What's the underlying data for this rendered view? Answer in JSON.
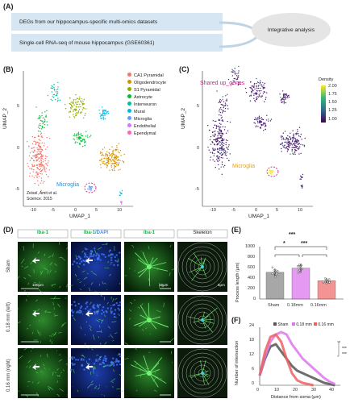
{
  "panelA": {
    "label": "(A)",
    "bar1": "DEGs from our hippocampus-specific multi-omics datasets",
    "bar2": "Single-cell RNA-seq of mouse hippocampus (GSE60361)",
    "ellipse": "Integrative analysis"
  },
  "panelB": {
    "label": "(B)",
    "xlabel": "UMAP_1",
    "ylabel": "UMAP_2",
    "xticks": [
      "-10",
      "-5",
      "0",
      "5",
      "10"
    ],
    "yticks": [
      "5",
      "0",
      "-5"
    ],
    "legend": [
      {
        "name": "CA1 Pyramidal",
        "color": "#f4756b"
      },
      {
        "name": "Oligodendrocyte",
        "color": "#d39200"
      },
      {
        "name": "S1 Pyramidal",
        "color": "#93aa00"
      },
      {
        "name": "Astrocyte",
        "color": "#00ba38"
      },
      {
        "name": "Interneuron",
        "color": "#00c19f"
      },
      {
        "name": "Mural",
        "color": "#00b9e3"
      },
      {
        "name": "Microglia",
        "color": "#619cff"
      },
      {
        "name": "Endothelial",
        "color": "#db72fb"
      },
      {
        "name": "Ependymal",
        "color": "#ff61c3"
      }
    ],
    "microglia_label": "Microglia",
    "citation1": "Zeisel, Amit et al.",
    "citation2": "Science. 2015"
  },
  "panelC": {
    "label": "(C)",
    "title": "Shared up_genes",
    "xlabel": "UMAP_1",
    "ylabel": "UMAP_2",
    "xticks": [
      "-10",
      "-5",
      "0",
      "5",
      "10"
    ],
    "yticks": [
      "5",
      "0",
      "-5"
    ],
    "density_title": "Density",
    "density_ticks": [
      "2.00",
      "1.75",
      "1.50",
      "1.25",
      "1.00"
    ],
    "microglia_label": "Microglia"
  },
  "panelD": {
    "label": "(D)",
    "headers": [
      "Iba-1",
      "Iba-1/DAPI",
      "Iba-1",
      "Skeleton"
    ],
    "header2_part1": "Iba-1",
    "header2_part2": "/DAPI",
    "rows": [
      "Sham",
      "0.18 mm (left)",
      "0.16 mm (right)"
    ],
    "scalebar1": "100μm",
    "scalebar2": "10μm",
    "scalebar3": "6μm"
  },
  "panelE": {
    "label": "(E)",
    "ylabel": "Process length (μm)",
    "yticks": [
      "1000",
      "800",
      "600",
      "400",
      "200",
      "0"
    ],
    "categories": [
      "Sham",
      "0.18mm",
      "0.16mm"
    ],
    "sig": [
      "***",
      "*",
      "***"
    ]
  },
  "panelF": {
    "label": "(F)",
    "ylabel": "Number of intersection",
    "xlabel": "Distance from soma (μm)",
    "yticks": [
      "24",
      "18",
      "12",
      "6",
      "0"
    ],
    "xticks": [
      "0",
      "10",
      "20",
      "30",
      "40"
    ],
    "legend": [
      "Sham",
      "0.18 mm",
      "0.16 mm"
    ],
    "sig": [
      "*",
      "***",
      "***"
    ]
  },
  "chart_data": [
    {
      "type": "bar",
      "categories": [
        "Sham",
        "0.18mm",
        "0.16mm"
      ],
      "values": [
        510,
        590,
        350
      ],
      "ylabel": "Process length (μm)",
      "ylim": [
        0,
        1000
      ],
      "colors": [
        "#8a8a8a",
        "#dd77ee",
        "#f07070"
      ]
    },
    {
      "type": "line",
      "xlabel": "Distance from soma (μm)",
      "ylabel": "Number of intersection",
      "xlim": [
        0,
        45
      ],
      "ylim": [
        0,
        24
      ],
      "series": [
        {
          "name": "Sham",
          "color": "#555555",
          "x": [
            0,
            3,
            6,
            9,
            12,
            15,
            18,
            21,
            24,
            27,
            30,
            33,
            36,
            39,
            42
          ],
          "y": [
            4,
            11,
            16,
            17,
            14,
            11,
            8,
            6,
            5,
            4,
            3,
            2,
            1,
            0.5,
            0
          ]
        },
        {
          "name": "0.18 mm",
          "color": "#dd77ee",
          "x": [
            0,
            3,
            6,
            9,
            12,
            15,
            18,
            21,
            24,
            27,
            30,
            33,
            36,
            39,
            42
          ],
          "y": [
            4,
            12,
            18,
            21,
            22,
            21,
            17,
            14,
            11,
            9,
            7,
            5,
            3,
            1.5,
            0.5
          ]
        },
        {
          "name": "0.16 mm",
          "color": "#f06060",
          "x": [
            0,
            3,
            6,
            9,
            12,
            15,
            18,
            21,
            24,
            27,
            30
          ],
          "y": [
            4,
            14,
            20,
            21,
            18,
            11,
            5,
            2,
            1,
            0.5,
            0
          ]
        }
      ]
    }
  ]
}
